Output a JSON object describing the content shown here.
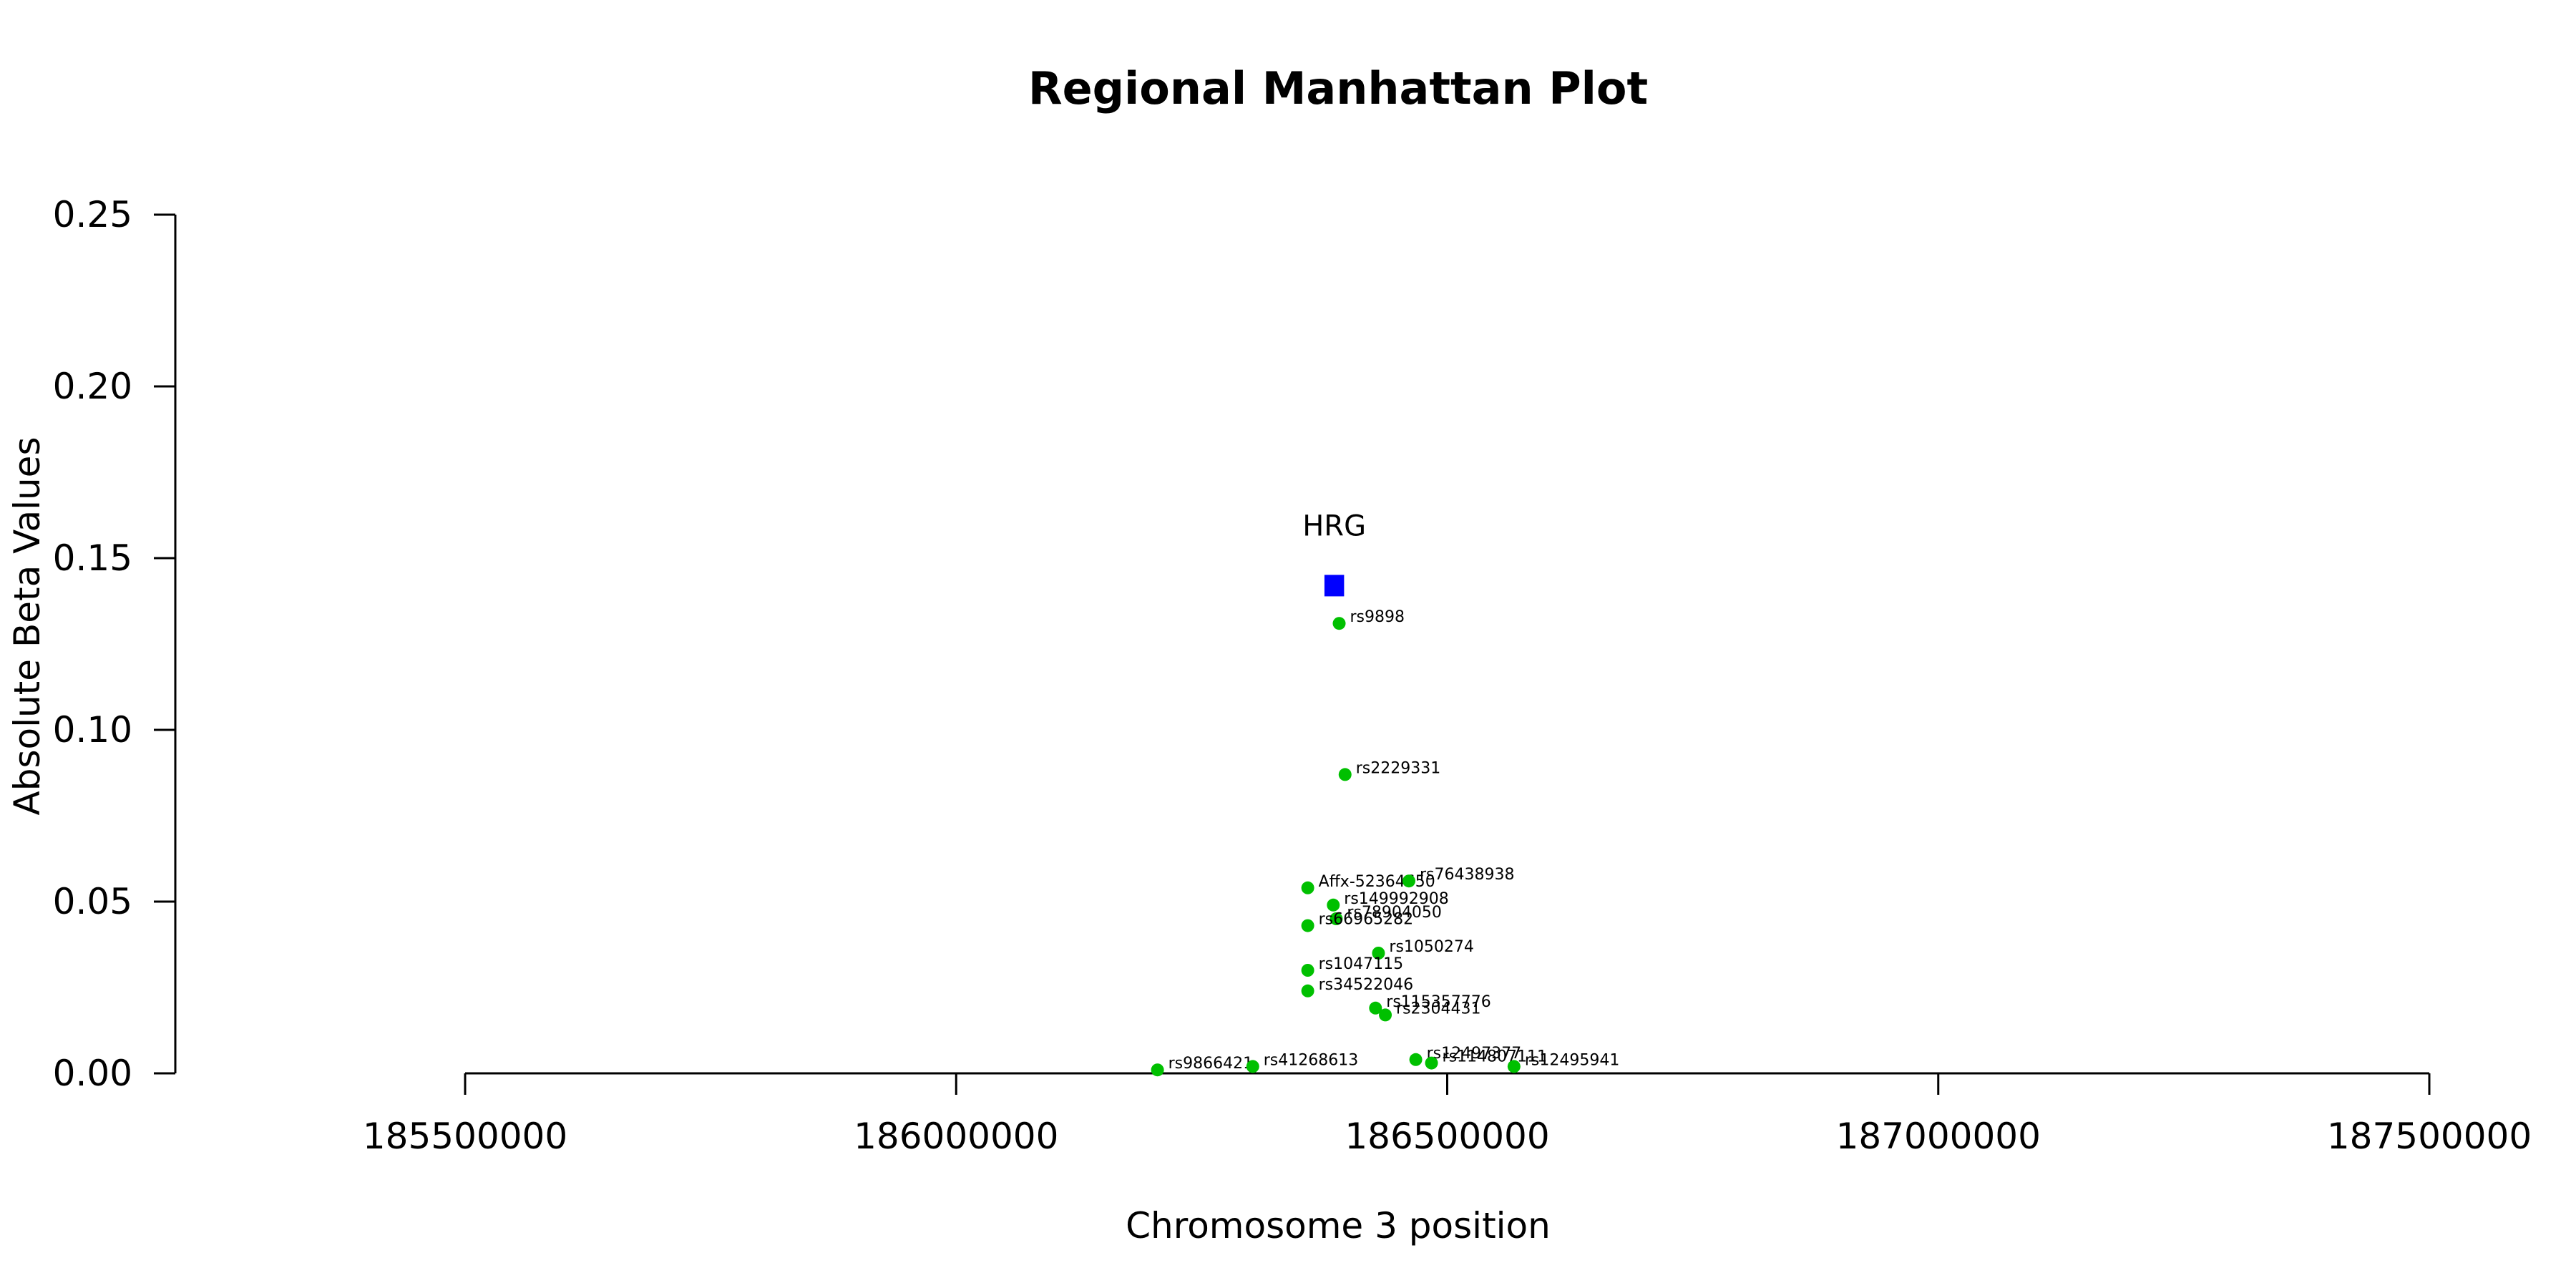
{
  "chart_data": {
    "type": "scatter",
    "title": "Regional Manhattan Plot",
    "xlabel": "Chromosome 3 position",
    "ylabel": "Absolute Beta Values",
    "xlim": [
      185205000,
      187520000
    ],
    "ylim": [
      0,
      0.25
    ],
    "x_ticks": [
      185500000,
      186000000,
      186500000,
      187000000,
      187500000
    ],
    "x_tick_labels": [
      "185500000",
      "186000000",
      "186500000",
      "187000000",
      "187500000"
    ],
    "y_ticks": [
      0,
      0.05,
      0.1,
      0.15,
      0.2,
      0.25
    ],
    "y_tick_labels": [
      "0.00",
      "0.05",
      "0.10",
      "0.15",
      "0.20",
      "0.25"
    ],
    "grid": false,
    "point_color": "#00c000",
    "gene_color": "#0000ff",
    "gene": {
      "name": "HRG",
      "start": 186375000,
      "end": 186395000,
      "value": 0.142
    },
    "points": [
      {
        "id": "rs9898",
        "x": 186390000,
        "y": 0.131
      },
      {
        "id": "rs2229331",
        "x": 186396000,
        "y": 0.087
      },
      {
        "id": "Affx-52364650",
        "x": 186358000,
        "y": 0.054
      },
      {
        "id": "rs76438938",
        "x": 186461000,
        "y": 0.056
      },
      {
        "id": "rs149992908",
        "x": 186384000,
        "y": 0.049
      },
      {
        "id": "rs78904050",
        "x": 186387000,
        "y": 0.045
      },
      {
        "id": "rs66965282",
        "x": 186358000,
        "y": 0.043
      },
      {
        "id": "rs1050274",
        "x": 186430000,
        "y": 0.035
      },
      {
        "id": "rs1047115",
        "x": 186358000,
        "y": 0.03
      },
      {
        "id": "rs34522046",
        "x": 186358000,
        "y": 0.024
      },
      {
        "id": "rs115357776",
        "x": 186427000,
        "y": 0.019
      },
      {
        "id": "rs2304431",
        "x": 186437000,
        "y": 0.017
      },
      {
        "id": "rs12497377",
        "x": 186468000,
        "y": 0.004
      },
      {
        "id": "rs114807111",
        "x": 186484000,
        "y": 0.003
      },
      {
        "id": "rs12495941",
        "x": 186568000,
        "y": 0.002
      },
      {
        "id": "rs9866421",
        "x": 186205000,
        "y": 0.001
      },
      {
        "id": "rs41268613",
        "x": 186302000,
        "y": 0.002
      }
    ]
  }
}
